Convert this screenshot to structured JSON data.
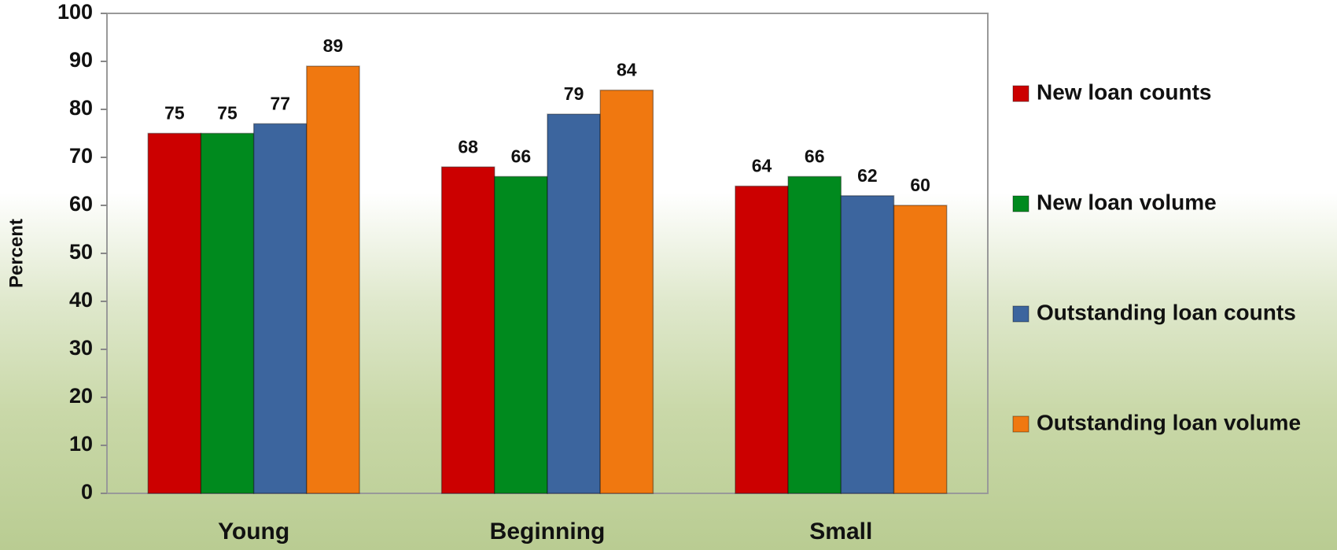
{
  "chart_data": {
    "type": "bar",
    "y_label": "Percent",
    "categories": [
      "Young",
      "Beginning",
      "Small"
    ],
    "series": [
      {
        "name": "New loan counts",
        "color": "#cc0000",
        "values": [
          75,
          68,
          64
        ]
      },
      {
        "name": "New loan volume",
        "color": "#008a1e",
        "values": [
          75,
          66,
          66
        ]
      },
      {
        "name": "Outstanding loan counts",
        "color": "#3c659e",
        "values": [
          77,
          79,
          62
        ]
      },
      {
        "name": "Outstanding loan volume",
        "color": "#f07810",
        "values": [
          89,
          84,
          60
        ]
      }
    ],
    "ylim": [
      0,
      100
    ],
    "yticks": [
      0,
      10,
      20,
      30,
      40,
      50,
      60,
      70,
      80,
      90,
      100
    ],
    "grid": false,
    "legend": "right"
  }
}
